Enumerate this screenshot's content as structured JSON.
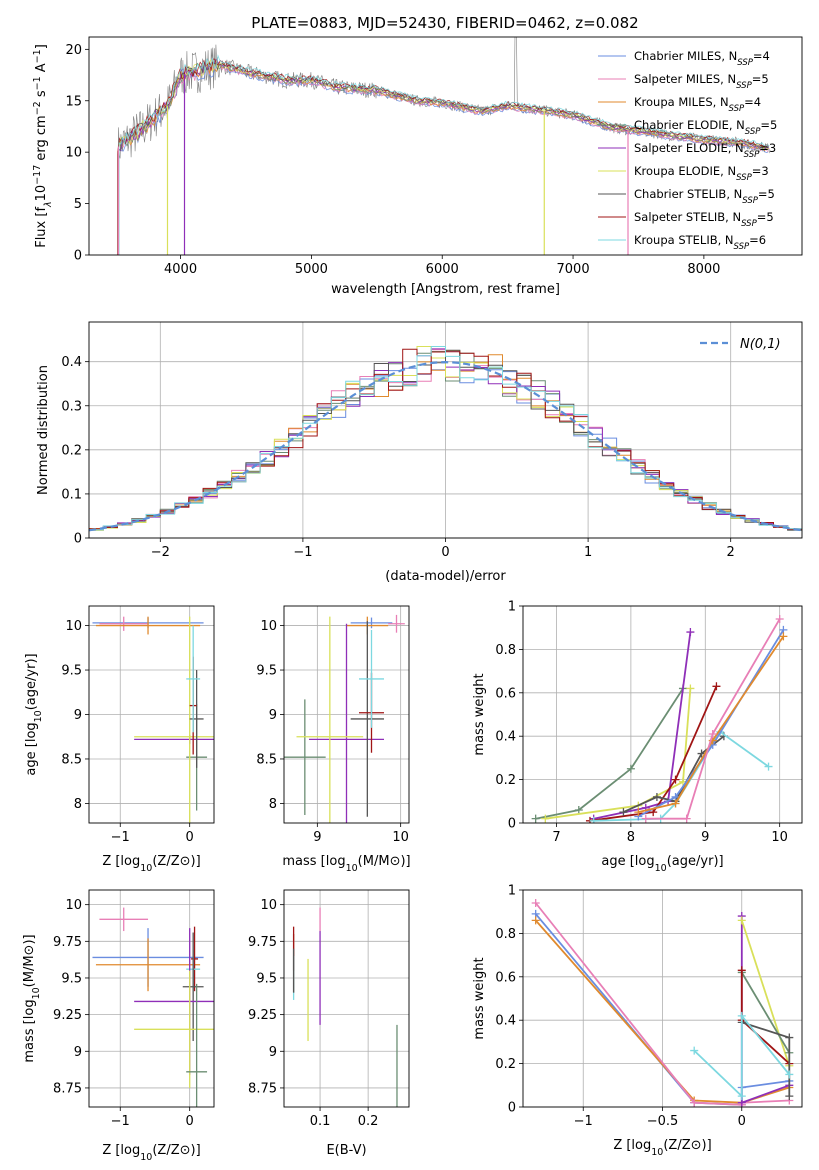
{
  "title": "PLATE=0883, MJD=52430, FIBERID=0462, z=0.082",
  "colors": [
    "#6a8de0",
    "#e87fb6",
    "#e08a2e",
    "#6b8e73",
    "#8f2fb8",
    "#d9e05a",
    "#555555",
    "#a01515",
    "#7dd8e0"
  ],
  "legend": [
    "Chabrier MILES, NSSP=4",
    "Salpeter MILES, NSSP=5",
    "Kroupa MILES, NSSP=4",
    "Chabrier ELODIE, NSSP=5",
    "Salpeter ELODIE, NSSP=3",
    "Kroupa ELODIE, NSSP=3",
    "Chabrier STELIB, NSSP=5",
    "Salpeter STELIB, NSSP=5",
    "Kroupa STELIB, NSSP=6"
  ],
  "legend_series": [
    {
      "model": "Chabrier MILES, N",
      "sub": "SSP",
      "n": "=4"
    },
    {
      "model": "Salpeter MILES, N",
      "sub": "SSP",
      "n": "=5"
    },
    {
      "model": "Kroupa MILES, N",
      "sub": "SSP",
      "n": "=4"
    },
    {
      "model": "Chabrier ELODIE, N",
      "sub": "SSP",
      "n": "=5"
    },
    {
      "model": "Salpeter ELODIE, N",
      "sub": "SSP",
      "n": "=3"
    },
    {
      "model": "Kroupa ELODIE, N",
      "sub": "SSP",
      "n": "=3"
    },
    {
      "model": "Chabrier STELIB, N",
      "sub": "SSP",
      "n": "=5"
    },
    {
      "model": "Salpeter STELIB, N",
      "sub": "SSP",
      "n": "=5"
    },
    {
      "model": "Kroupa STELIB, N",
      "sub": "SSP",
      "n": "=6"
    }
  ],
  "chart_data": [
    {
      "id": "spectrum",
      "type": "line",
      "xlabel": "wavelength [Angstrom, rest frame]",
      "ylabel_parts": [
        "Flux [f",
        "λ",
        "10",
        "−17",
        " erg cm",
        "−2",
        " s",
        "−1",
        " A",
        "−1",
        "]"
      ],
      "xlim": [
        3300,
        8750
      ],
      "ylim": [
        0,
        21.2
      ],
      "xticks": [
        4000,
        5000,
        6000,
        7000,
        8000
      ],
      "yticks": [
        0,
        5,
        10,
        15,
        20
      ],
      "continuum": [
        [
          3520,
          10.5
        ],
        [
          3700,
          12.2
        ],
        [
          3900,
          14.5
        ],
        [
          4000,
          17.5
        ],
        [
          4100,
          17.8
        ],
        [
          4300,
          18.5
        ],
        [
          4500,
          17.8
        ],
        [
          4800,
          17.0
        ],
        [
          5000,
          17.0
        ],
        [
          5200,
          16.3
        ],
        [
          5500,
          16.0
        ],
        [
          5800,
          15.0
        ],
        [
          6000,
          14.8
        ],
        [
          6300,
          14.0
        ],
        [
          6500,
          14.5
        ],
        [
          6800,
          14.0
        ],
        [
          7000,
          13.6
        ],
        [
          7300,
          12.4
        ],
        [
          7600,
          11.9
        ],
        [
          8000,
          11.2
        ],
        [
          8300,
          10.9
        ],
        [
          8500,
          10.3
        ]
      ]
    },
    {
      "id": "residuals",
      "type": "step",
      "xlabel": "(data-model)/error",
      "ylabel": "Normed distribution",
      "xlim": [
        -2.5,
        2.5
      ],
      "ylim": [
        0,
        0.49
      ],
      "xticks": [
        -2,
        -1,
        0,
        1,
        2
      ],
      "yticks": [
        0.0,
        0.1,
        0.2,
        0.3,
        0.4
      ],
      "reference_label": "N(0,1)",
      "bin_width": 0.1
    },
    {
      "id": "age-vs-Z",
      "type": "errorbar",
      "xlabel_parts": [
        "Z [log",
        "10",
        "(Z/Z",
        "⊙",
        ")]"
      ],
      "ylabel_parts": [
        "age  [log",
        "10",
        "(age/yr)]"
      ],
      "xlim": [
        -1.45,
        0.35
      ],
      "ylim": [
        7.78,
        10.22
      ],
      "xticks": [
        -1,
        0
      ],
      "yticks": [
        8.0,
        8.5,
        9.0,
        9.5,
        10.0
      ],
      "points": [
        {
          "s": 0,
          "x": -0.6,
          "y": 10.03,
          "xe": 0.8,
          "ye": 0.06
        },
        {
          "s": 1,
          "x": -0.95,
          "y": 10.02,
          "xe": 0.35,
          "ye": 0.08
        },
        {
          "s": 2,
          "x": -0.6,
          "y": 10.0,
          "xe": 0.75,
          "ye": 0.1
        },
        {
          "s": 3,
          "x": 0.1,
          "y": 8.52,
          "xe": 0.15,
          "ye": 0.6
        },
        {
          "s": 4,
          "x": 0.0,
          "y": 8.72,
          "xe": 0.8,
          "ye": 0.05
        },
        {
          "s": 5,
          "x": 0.0,
          "y": 8.75,
          "xe": 0.8,
          "ye": 1.35
        },
        {
          "s": 6,
          "x": 0.1,
          "y": 8.95,
          "xe": 0.1,
          "ye": 0.55
        },
        {
          "s": 7,
          "x": 0.05,
          "y": 9.1,
          "xe": 0.05,
          "ye": 0.55
        },
        {
          "s": 8,
          "x": 0.05,
          "y": 9.4,
          "xe": 0.1,
          "ye": 0.6
        }
      ]
    },
    {
      "id": "age-vs-mass",
      "type": "errorbar",
      "xlabel_parts": [
        "mass [log",
        "10",
        "(M/M",
        "⊙",
        ")]"
      ],
      "ylabel_parts": [
        "",
        "",
        ""
      ],
      "xlim": [
        8.6,
        10.1
      ],
      "ylim": [
        7.78,
        10.22
      ],
      "xticks": [
        9,
        10
      ],
      "yticks": [
        8.0,
        8.5,
        9.0,
        9.5,
        10.0
      ],
      "points": [
        {
          "s": 0,
          "x": 9.65,
          "y": 10.03,
          "xe": 0.25,
          "ye": 0.06
        },
        {
          "s": 1,
          "x": 9.95,
          "y": 10.02,
          "xe": 0.1,
          "ye": 0.1
        },
        {
          "s": 2,
          "x": 9.6,
          "y": 10.0,
          "xe": 0.25,
          "ye": 0.1
        },
        {
          "s": 3,
          "x": 8.85,
          "y": 8.52,
          "xe": 0.25,
          "ye": 0.65
        },
        {
          "s": 4,
          "x": 9.35,
          "y": 8.72,
          "xe": 0.45,
          "ye": 1.3
        },
        {
          "s": 5,
          "x": 9.15,
          "y": 8.75,
          "xe": 0.4,
          "ye": 1.35
        },
        {
          "s": 6,
          "x": 9.6,
          "y": 8.95,
          "xe": 0.2,
          "ye": 1.1
        },
        {
          "s": 7,
          "x": 9.65,
          "y": 9.02,
          "xe": 0.15,
          "ye": 0.45
        },
        {
          "s": 8,
          "x": 9.65,
          "y": 9.4,
          "xe": 0.15,
          "ye": 0.55
        }
      ]
    },
    {
      "id": "weight-vs-age",
      "type": "line",
      "xlabel_parts": [
        "age  [log",
        "10",
        "(age/yr)]"
      ],
      "ylabel": "mass weight",
      "xlim": [
        6.55,
        10.3
      ],
      "ylim": [
        0,
        1.0
      ],
      "xticks": [
        7,
        8,
        9,
        10
      ],
      "yticks": [
        0.0,
        0.2,
        0.4,
        0.6,
        0.8,
        1.0
      ],
      "series": [
        {
          "s": 3,
          "pts": [
            [
              6.72,
              0.02
            ],
            [
              7.3,
              0.06
            ],
            [
              8.0,
              0.25
            ],
            [
              8.7,
              0.62
            ]
          ]
        },
        {
          "s": 5,
          "pts": [
            [
              6.85,
              0.02
            ],
            [
              8.1,
              0.08
            ],
            [
              8.7,
              0.19
            ],
            [
              8.8,
              0.62
            ]
          ]
        },
        {
          "s": 4,
          "pts": [
            [
              7.5,
              0.02
            ],
            [
              8.2,
              0.07
            ],
            [
              8.5,
              0.1
            ],
            [
              8.8,
              0.88
            ]
          ]
        },
        {
          "s": 7,
          "pts": [
            [
              7.45,
              0.01
            ],
            [
              8.3,
              0.05
            ],
            [
              8.6,
              0.2
            ],
            [
              9.15,
              0.63
            ]
          ]
        },
        {
          "s": 6,
          "pts": [
            [
              7.9,
              0.05
            ],
            [
              8.35,
              0.12
            ],
            [
              8.6,
              0.1
            ],
            [
              8.95,
              0.32
            ],
            [
              9.25,
              0.4
            ]
          ]
        },
        {
          "s": 8,
          "pts": [
            [
              7.5,
              0.01
            ],
            [
              8.4,
              0.02
            ],
            [
              8.6,
              0.09
            ],
            [
              9.2,
              0.42
            ],
            [
              9.85,
              0.26
            ]
          ]
        },
        {
          "s": 0,
          "pts": [
            [
              8.1,
              0.03
            ],
            [
              8.6,
              0.12
            ],
            [
              9.1,
              0.36
            ],
            [
              10.05,
              0.89
            ]
          ]
        },
        {
          "s": 2,
          "pts": [
            [
              8.1,
              0.05
            ],
            [
              8.6,
              0.09
            ],
            [
              9.1,
              0.38
            ],
            [
              10.05,
              0.86
            ]
          ]
        },
        {
          "s": 1,
          "pts": [
            [
              8.2,
              0.02
            ],
            [
              8.75,
              0.02
            ],
            [
              9.1,
              0.41
            ],
            [
              10.0,
              0.94
            ]
          ]
        }
      ]
    },
    {
      "id": "mass-vs-Z",
      "type": "errorbar",
      "xlabel_parts": [
        "Z [log",
        "10",
        "(Z/Z",
        "⊙",
        ")]"
      ],
      "ylabel_parts": [
        "mass [log",
        "10",
        "(M/M",
        "⊙",
        ")]"
      ],
      "xlim": [
        -1.45,
        0.35
      ],
      "ylim": [
        8.62,
        10.1
      ],
      "xticks": [
        -1,
        0
      ],
      "yticks": [
        8.75,
        9.0,
        9.25,
        9.5,
        9.75,
        10.0
      ],
      "points": [
        {
          "s": 1,
          "x": -0.95,
          "y": 9.9,
          "xe": 0.35,
          "ye": 0.08
        },
        {
          "s": 0,
          "x": -0.6,
          "y": 9.64,
          "xe": 0.8,
          "ye": 0.2
        },
        {
          "s": 2,
          "x": -0.6,
          "y": 9.59,
          "xe": 0.75,
          "ye": 0.18
        },
        {
          "s": 7,
          "x": 0.07,
          "y": 9.63,
          "xe": 0.05,
          "ye": 0.22
        },
        {
          "s": 8,
          "x": 0.05,
          "y": 9.56,
          "xe": 0.1,
          "ye": 0.13
        },
        {
          "s": 6,
          "x": 0.05,
          "y": 9.44,
          "xe": 0.15,
          "ye": 0.37
        },
        {
          "s": 4,
          "x": 0.0,
          "y": 9.34,
          "xe": 0.8,
          "ye": 0.5
        },
        {
          "s": 5,
          "x": 0.0,
          "y": 9.15,
          "xe": 0.8,
          "ye": 0.4
        },
        {
          "s": 3,
          "x": 0.1,
          "y": 8.86,
          "xe": 0.15,
          "ye": 0.6
        }
      ]
    },
    {
      "id": "mass-vs-ebv",
      "type": "errorbar",
      "xlabel": "E(B-V)",
      "xlim": [
        0.025,
        0.285
      ],
      "ylim": [
        8.62,
        10.1
      ],
      "xticks": [
        0.1,
        0.2
      ],
      "yticks": [
        8.75,
        9.0,
        9.25,
        9.5,
        9.75,
        10.0
      ],
      "points": [
        {
          "s": 0,
          "x": 0.045,
          "y": 9.6,
          "xe": 0,
          "ye": 0.2
        },
        {
          "s": 2,
          "x": 0.045,
          "y": 9.6,
          "xe": 0,
          "ye": 0.2
        },
        {
          "s": 7,
          "x": 0.045,
          "y": 9.7,
          "xe": 0,
          "ye": 0.15
        },
        {
          "s": 8,
          "x": 0.045,
          "y": 9.5,
          "xe": 0,
          "ye": 0.15
        },
        {
          "s": 6,
          "x": 0.045,
          "y": 9.55,
          "xe": 0,
          "ye": 0.15
        },
        {
          "s": 5,
          "x": 0.075,
          "y": 9.35,
          "xe": 0,
          "ye": 0.28
        },
        {
          "s": 1,
          "x": 0.1,
          "y": 9.9,
          "xe": 0,
          "ye": 0.08
        },
        {
          "s": 4,
          "x": 0.1,
          "y": 9.5,
          "xe": 0,
          "ye": 0.32
        },
        {
          "s": 3,
          "x": 0.26,
          "y": 8.9,
          "xe": 0,
          "ye": 0.28
        }
      ]
    },
    {
      "id": "weight-vs-Z",
      "type": "line",
      "xlabel_parts": [
        "Z [log",
        "10",
        "(Z/Z",
        "⊙",
        ")]"
      ],
      "ylabel": "mass weight",
      "xlim": [
        -1.38,
        0.38
      ],
      "ylim": [
        0,
        1.0
      ],
      "xticks": [
        -1.0,
        -0.5,
        0.0
      ],
      "yticks": [
        0.0,
        0.2,
        0.4,
        0.6,
        0.8,
        1.0
      ],
      "series": [
        {
          "s": 0,
          "pts": [
            [
              -1.3,
              0.89
            ],
            [
              -0.3,
              0.02
            ],
            [
              0.0,
              0.01
            ],
            [
              0.0,
              0.09
            ],
            [
              0.3,
              0.12
            ]
          ]
        },
        {
          "s": 2,
          "pts": [
            [
              -1.3,
              0.86
            ],
            [
              -0.3,
              0.03
            ],
            [
              0.0,
              0.02
            ],
            [
              0.3,
              0.09
            ]
          ]
        },
        {
          "s": 1,
          "pts": [
            [
              -1.3,
              0.94
            ],
            [
              -0.3,
              0.02
            ],
            [
              0.0,
              0.01
            ],
            [
              0.0,
              0.02
            ],
            [
              0.3,
              0.03
            ]
          ]
        },
        {
          "s": 4,
          "pts": [
            [
              0.0,
              0.88
            ],
            [
              0.0,
              0.02
            ],
            [
              0.3,
              0.1
            ]
          ]
        },
        {
          "s": 5,
          "pts": [
            [
              0.0,
              0.86
            ],
            [
              0.3,
              0.19
            ]
          ]
        },
        {
          "s": 3,
          "pts": [
            [
              0.0,
              0.62
            ],
            [
              0.3,
              0.25
            ]
          ]
        },
        {
          "s": 7,
          "pts": [
            [
              0.0,
              0.63
            ],
            [
              0.0,
              0.4
            ],
            [
              0.3,
              0.2
            ]
          ]
        },
        {
          "s": 6,
          "pts": [
            [
              0.0,
              0.39
            ],
            [
              0.3,
              0.32
            ],
            [
              0.3,
              0.05
            ]
          ]
        },
        {
          "s": 8,
          "pts": [
            [
              -0.3,
              0.26
            ],
            [
              0.0,
              0.05
            ],
            [
              0.0,
              0.42
            ],
            [
              0.3,
              0.15
            ]
          ]
        }
      ]
    }
  ]
}
